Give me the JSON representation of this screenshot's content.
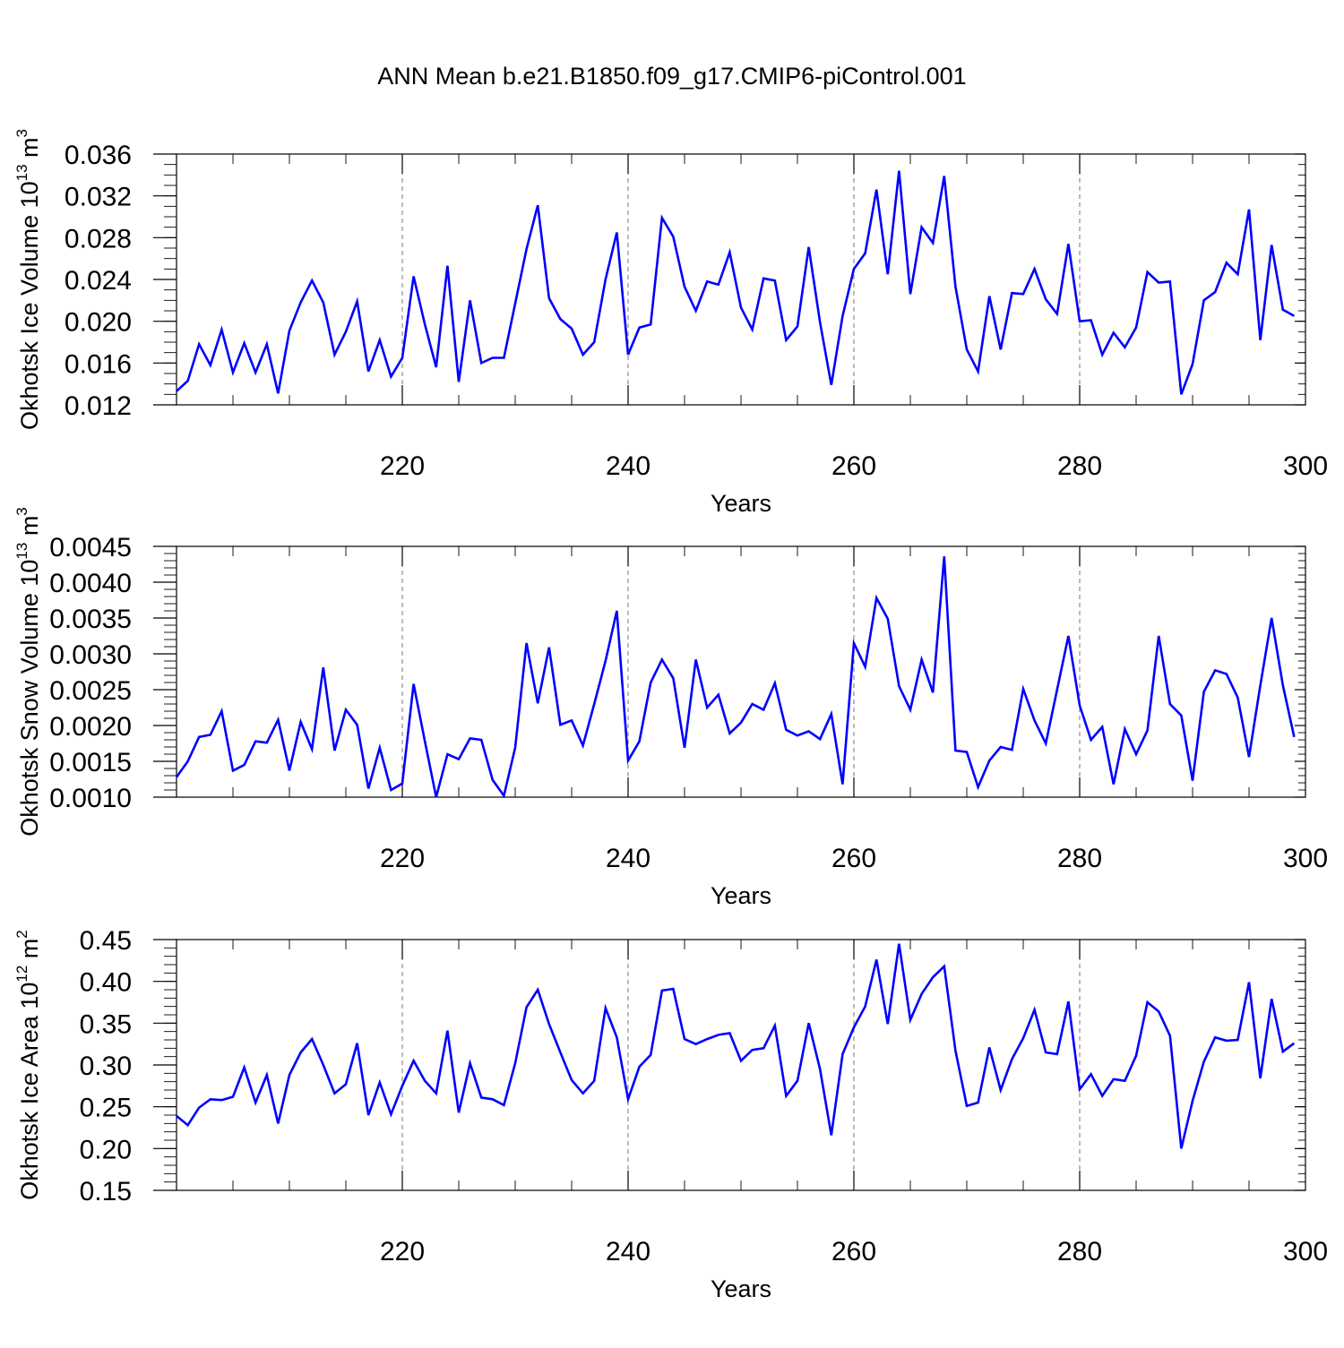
{
  "title": "ANN Mean b.e21.B1850.f09_g17.CMIP6-piControl.001",
  "colors": {
    "line": "#0000ff",
    "axis": "#000000",
    "grid": "#777777"
  },
  "chart_data": [
    {
      "type": "line",
      "name": "okhotsk-ice-volume",
      "ylabel_main": "Okhotsk Ice Volume 10",
      "ylabel_sup1": "13",
      "ylabel_mid": " m",
      "ylabel_sup2": "3",
      "xlabel": "Years",
      "xlim": [
        200,
        300
      ],
      "ylim": [
        0.012,
        0.036
      ],
      "xticks": [
        220,
        240,
        260,
        280,
        300
      ],
      "xtick_labels": [
        "220",
        "240",
        "260",
        "280",
        "300"
      ],
      "yticks": [
        0.012,
        0.016,
        0.02,
        0.024,
        0.028,
        0.032,
        0.036
      ],
      "ytick_labels": [
        "0.012",
        "0.016",
        "0.020",
        "0.024",
        "0.028",
        "0.032",
        "0.036"
      ],
      "yminor_step": 0.001,
      "grid": "vertical dashed at major x ticks",
      "x_start": 200,
      "values": [
        0.0133,
        0.0143,
        0.0178,
        0.0158,
        0.0192,
        0.0151,
        0.0179,
        0.0151,
        0.0178,
        0.0131,
        0.0191,
        0.0218,
        0.0239,
        0.0218,
        0.0168,
        0.019,
        0.0219,
        0.0152,
        0.0182,
        0.0147,
        0.0165,
        0.0243,
        0.0197,
        0.0156,
        0.0253,
        0.0142,
        0.022,
        0.016,
        0.0165,
        0.0165,
        0.0217,
        0.0269,
        0.0311,
        0.0222,
        0.0202,
        0.0193,
        0.0168,
        0.018,
        0.024,
        0.0285,
        0.0168,
        0.0194,
        0.0197,
        0.0299,
        0.0281,
        0.0233,
        0.021,
        0.0238,
        0.0235,
        0.0266,
        0.0213,
        0.0192,
        0.0241,
        0.0239,
        0.0182,
        0.0195,
        0.0271,
        0.0199,
        0.0139,
        0.0205,
        0.025,
        0.0265,
        0.0326,
        0.0245,
        0.0344,
        0.0226,
        0.029,
        0.0275,
        0.0339,
        0.0233,
        0.0173,
        0.0152,
        0.0224,
        0.0173,
        0.0227,
        0.0226,
        0.025,
        0.0221,
        0.0207,
        0.0274,
        0.02,
        0.0201,
        0.0168,
        0.0189,
        0.0175,
        0.0194,
        0.0247,
        0.0237,
        0.0238,
        0.013,
        0.0159,
        0.022,
        0.0228,
        0.0256,
        0.0245,
        0.0307,
        0.0182,
        0.0273,
        0.0211,
        0.0205
      ]
    },
    {
      "type": "line",
      "name": "okhotsk-snow-volume",
      "ylabel_main": "Okhotsk Snow Volume 10",
      "ylabel_sup1": "13",
      "ylabel_mid": " m",
      "ylabel_sup2": "3",
      "xlabel": "Years",
      "xlim": [
        200,
        300
      ],
      "ylim": [
        0.001,
        0.0045
      ],
      "xticks": [
        220,
        240,
        260,
        280,
        300
      ],
      "xtick_labels": [
        "220",
        "240",
        "260",
        "280",
        "300"
      ],
      "yticks": [
        0.001,
        0.0015,
        0.002,
        0.0025,
        0.003,
        0.0035,
        0.004,
        0.0045
      ],
      "ytick_labels": [
        "0.0010",
        "0.0015",
        "0.0020",
        "0.0025",
        "0.0030",
        "0.0035",
        "0.0040",
        "0.0045"
      ],
      "yminor_step": 0.0001,
      "grid": "vertical dashed at major x ticks",
      "x_start": 200,
      "values": [
        0.00128,
        0.0015,
        0.00184,
        0.00187,
        0.0022,
        0.00137,
        0.00145,
        0.00178,
        0.00176,
        0.00208,
        0.00137,
        0.00205,
        0.00167,
        0.00281,
        0.00165,
        0.00222,
        0.00201,
        0.00112,
        0.00169,
        0.0011,
        0.00119,
        0.00258,
        0.00178,
        0.001,
        0.0016,
        0.00153,
        0.00182,
        0.0018,
        0.00124,
        0.00102,
        0.00169,
        0.00315,
        0.00231,
        0.00309,
        0.00201,
        0.00207,
        0.00172,
        0.0023,
        0.0029,
        0.0036,
        0.00151,
        0.00178,
        0.0026,
        0.00292,
        0.00266,
        0.00169,
        0.00292,
        0.00225,
        0.00243,
        0.00189,
        0.00204,
        0.0023,
        0.00222,
        0.00259,
        0.00194,
        0.00186,
        0.00192,
        0.00181,
        0.00216,
        0.00118,
        0.00315,
        0.00282,
        0.00378,
        0.00349,
        0.00255,
        0.00222,
        0.00292,
        0.00246,
        0.00436,
        0.00165,
        0.00163,
        0.00114,
        0.00151,
        0.0017,
        0.00166,
        0.00251,
        0.00207,
        0.00175,
        0.0025,
        0.00325,
        0.00228,
        0.0018,
        0.00198,
        0.00118,
        0.00195,
        0.0016,
        0.00193,
        0.00325,
        0.0023,
        0.00214,
        0.00123,
        0.00247,
        0.00277,
        0.00272,
        0.00239,
        0.00156,
        0.00256,
        0.0035,
        0.00256,
        0.00184
      ]
    },
    {
      "type": "line",
      "name": "okhotsk-ice-area",
      "ylabel_main": "Okhotsk Ice Area 10",
      "ylabel_sup1": "12",
      "ylabel_mid": " m",
      "ylabel_sup2": "2",
      "xlabel": "Years",
      "xlim": [
        200,
        300
      ],
      "ylim": [
        0.15,
        0.45
      ],
      "xticks": [
        220,
        240,
        260,
        280,
        300
      ],
      "xtick_labels": [
        "220",
        "240",
        "260",
        "280",
        "300"
      ],
      "yticks": [
        0.15,
        0.2,
        0.25,
        0.3,
        0.35,
        0.4,
        0.45
      ],
      "ytick_labels": [
        "0.15",
        "0.20",
        "0.25",
        "0.30",
        "0.35",
        "0.40",
        "0.45"
      ],
      "yminor_step": 0.01,
      "grid": "vertical dashed at major x ticks",
      "x_start": 200,
      "values": [
        0.239,
        0.228,
        0.249,
        0.259,
        0.258,
        0.262,
        0.297,
        0.255,
        0.288,
        0.23,
        0.288,
        0.315,
        0.331,
        0.3,
        0.266,
        0.277,
        0.326,
        0.24,
        0.279,
        0.241,
        0.275,
        0.305,
        0.281,
        0.266,
        0.341,
        0.243,
        0.302,
        0.261,
        0.259,
        0.252,
        0.302,
        0.369,
        0.39,
        0.349,
        0.315,
        0.282,
        0.266,
        0.281,
        0.368,
        0.333,
        0.259,
        0.298,
        0.312,
        0.389,
        0.391,
        0.331,
        0.325,
        0.331,
        0.336,
        0.338,
        0.305,
        0.318,
        0.32,
        0.347,
        0.263,
        0.281,
        0.35,
        0.295,
        0.216,
        0.313,
        0.345,
        0.37,
        0.426,
        0.349,
        0.445,
        0.354,
        0.385,
        0.405,
        0.418,
        0.317,
        0.251,
        0.255,
        0.321,
        0.27,
        0.307,
        0.332,
        0.366,
        0.315,
        0.313,
        0.376,
        0.271,
        0.289,
        0.263,
        0.283,
        0.281,
        0.311,
        0.375,
        0.364,
        0.335,
        0.2,
        0.257,
        0.304,
        0.333,
        0.329,
        0.33,
        0.399,
        0.284,
        0.379,
        0.316,
        0.326
      ]
    }
  ]
}
